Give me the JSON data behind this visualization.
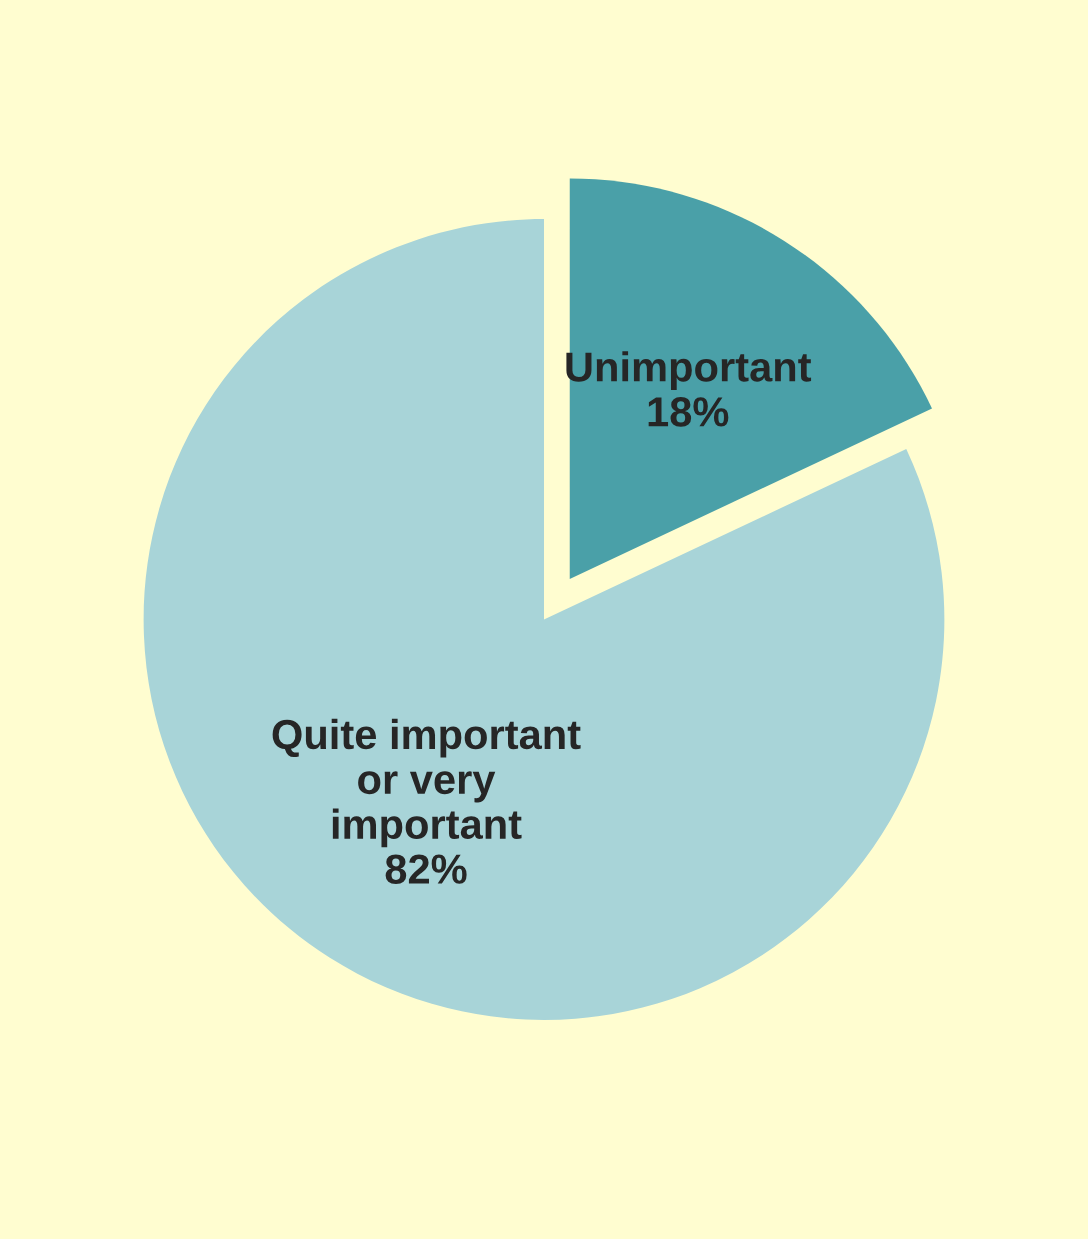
{
  "chart_data": {
    "type": "pie",
    "categories": [
      "Unimportant",
      "Quite important\nor very\nimportant"
    ],
    "values": [
      18,
      82
    ],
    "value_labels": [
      "18%",
      "82%"
    ],
    "colors": [
      "#4aa0a8",
      "#a8d4d8"
    ]
  }
}
